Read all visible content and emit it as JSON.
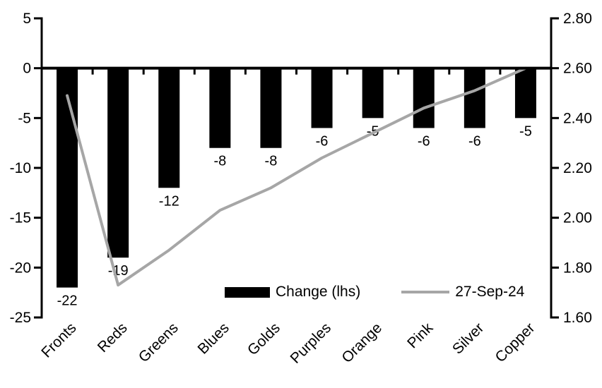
{
  "chart_data": {
    "type": "bar",
    "subtype": "combo-bar-line-dual-axis",
    "title": "",
    "xlabel": "",
    "ylabel": "",
    "grid": false,
    "background_color": "#ffffff",
    "text_color": "#000000",
    "axis_color": "#000000",
    "categories": [
      "Fronts",
      "Reds",
      "Greens",
      "Blues",
      "Golds",
      "Purples",
      "Orange",
      "Pink",
      "Silver",
      "Copper"
    ],
    "series": [
      {
        "name": "Change (lhs)",
        "type": "bar",
        "axis": "left",
        "color": "#000000",
        "values": [
          -22,
          -19,
          -12,
          -8,
          -8,
          -6,
          -5,
          -6,
          -6,
          -5
        ],
        "data_labels": [
          "-22",
          "-19",
          "-12",
          "-8",
          "-8",
          "-6",
          "-5",
          "-6",
          "-6",
          "-5"
        ]
      },
      {
        "name": "27-Sep-24",
        "type": "line",
        "axis": "right",
        "color": "#a6a6a6",
        "values": [
          2.49,
          1.73,
          1.87,
          2.03,
          2.12,
          2.24,
          2.34,
          2.44,
          2.51,
          2.6
        ]
      }
    ],
    "left_axis": {
      "min": -25,
      "max": 5,
      "step": 5,
      "tick_labels": [
        "5",
        "0",
        "-5",
        "-10",
        "-15",
        "-20",
        "-25"
      ]
    },
    "right_axis": {
      "min": 1.6,
      "max": 2.8,
      "step": 0.2,
      "tick_labels": [
        "2.80",
        "2.60",
        "2.40",
        "2.20",
        "2.00",
        "1.80",
        "1.60"
      ]
    },
    "legend": {
      "position": "bottom-inside",
      "items": [
        {
          "label": "Change (lhs)",
          "swatch": "bar",
          "color": "#000000"
        },
        {
          "label": "27-Sep-24",
          "swatch": "line",
          "color": "#a6a6a6"
        }
      ]
    }
  }
}
